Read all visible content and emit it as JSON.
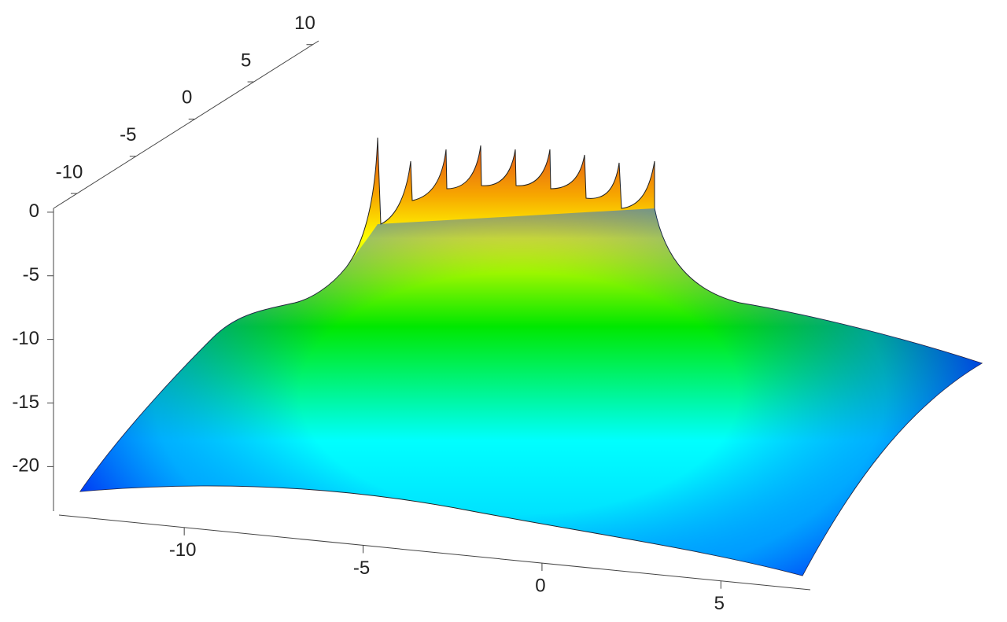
{
  "chart_data": {
    "type": "surface3d",
    "xlim": [
      -13.5,
      7.5
    ],
    "xticks": [
      -10,
      -5,
      0,
      5
    ],
    "ylim": [
      -12,
      10.5
    ],
    "yticks": [
      -10,
      -5,
      0,
      5,
      10
    ],
    "zlim": [
      -23.5,
      0.3
    ],
    "zticks": [
      0,
      -5,
      -10,
      -15,
      -20
    ]
  }
}
